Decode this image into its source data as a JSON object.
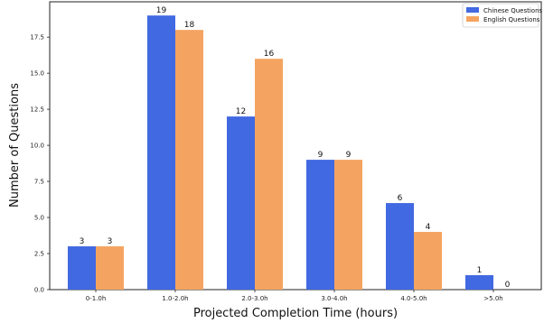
{
  "chart_data": {
    "type": "bar",
    "categories": [
      "0-1.0h",
      "1.0-2.0h",
      "2.0-3.0h",
      "3.0-4.0h",
      "4.0-5.0h",
      ">5.0h"
    ],
    "series": [
      {
        "name": "Chinese Questions",
        "values": [
          3,
          19,
          12,
          9,
          6,
          1
        ],
        "color": "#4169E1"
      },
      {
        "name": "English Questions",
        "values": [
          3,
          18,
          16,
          9,
          4,
          0
        ],
        "color": "#F4A460"
      }
    ],
    "xlabel": "Projected Completion Time (hours)",
    "ylabel": "Number of Questions",
    "ylim": [
      0,
      19.95
    ],
    "yticks": [
      0.0,
      2.5,
      5.0,
      7.5,
      10.0,
      12.5,
      15.0,
      17.5
    ],
    "ytick_labels": [
      "0.0",
      "2.5",
      "5.0",
      "7.5",
      "10.0",
      "12.5",
      "15.0",
      "17.5"
    ],
    "grid": false,
    "legend_position": "top-right"
  }
}
